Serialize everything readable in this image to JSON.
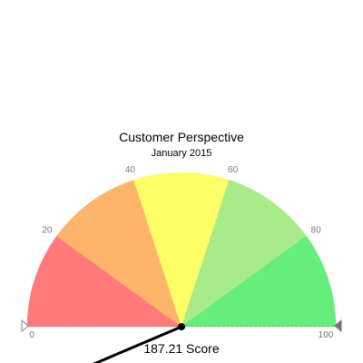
{
  "chart_data": {
    "type": "gauge",
    "title": "Customer Perspective",
    "subtitle": "January 2015",
    "axis_range": [
      0,
      100
    ],
    "bands": [
      {
        "from": 0,
        "to": 20,
        "color": "#ff7b7b"
      },
      {
        "from": 20,
        "to": 40,
        "color": "#ffb46b"
      },
      {
        "from": 40,
        "to": 60,
        "color": "#ffff66"
      },
      {
        "from": 60,
        "to": 80,
        "color": "#a8eb8a"
      },
      {
        "from": 80,
        "to": 100,
        "color": "#66ee7c"
      }
    ],
    "tick_labels": [
      "0",
      "20",
      "40",
      "60",
      "80",
      "100"
    ],
    "tick_values": [
      0,
      20,
      40,
      60,
      80,
      100
    ],
    "value": 187.21,
    "value_label": "187.21 Score",
    "needle_color": "#000000",
    "axis_marker_left_color": "#ffffff",
    "axis_marker_right_color": "#777777"
  }
}
